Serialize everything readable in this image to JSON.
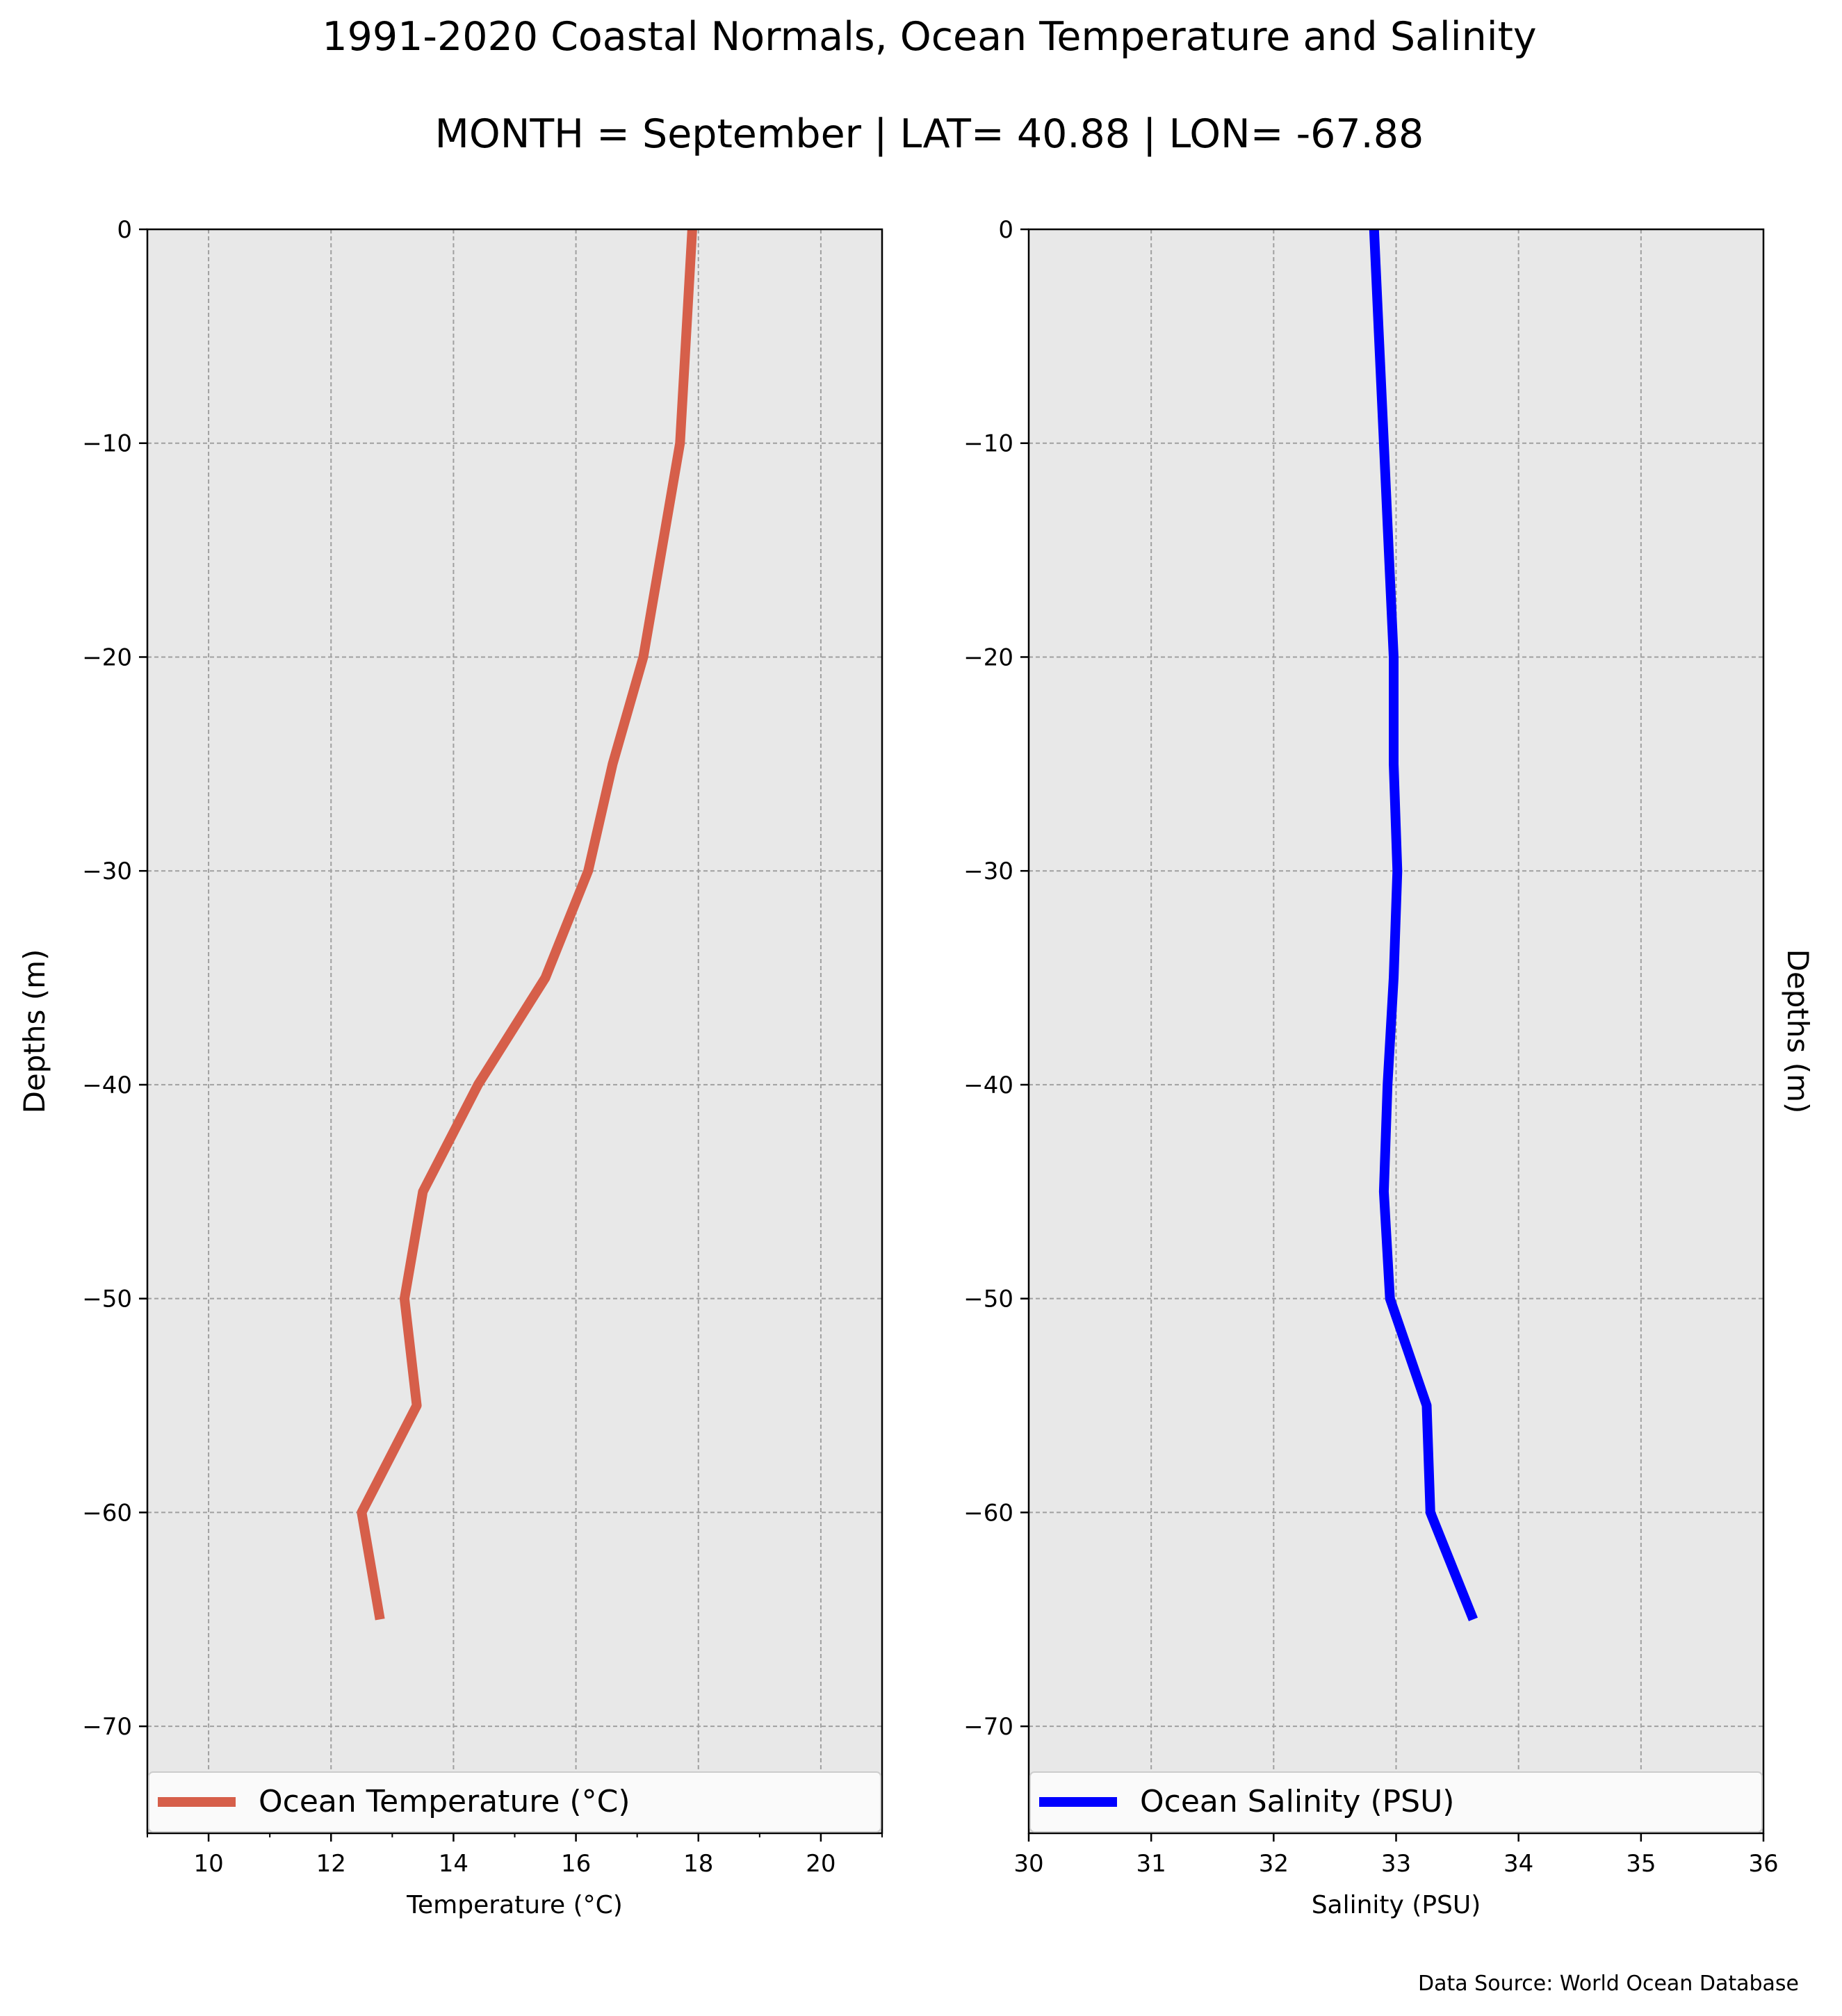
{
  "figure": {
    "title": "1991-2020 Coastal Normals, Ocean Temperature and Salinity",
    "subtitle": "MONTH = September | LAT= 40.88 | LON= -67.88",
    "source": "Data Source: World Ocean Database"
  },
  "chart_data": [
    {
      "type": "line",
      "xlabel": "Temperature ($^\\circ$C)",
      "xlabel_display": "Temperature (°C)",
      "ylabel": "Depths (m)",
      "xlim": [
        9,
        21
      ],
      "ylim": [
        -75,
        0
      ],
      "xticks": [
        10,
        12,
        14,
        16,
        18,
        20
      ],
      "xticks_labels": [
        "10",
        "12",
        "14",
        "16",
        "18",
        "20"
      ],
      "yticks": [
        0,
        -10,
        -20,
        -30,
        -40,
        -50,
        -60,
        -70
      ],
      "yticks_labels": [
        "0",
        "−10",
        "−20",
        "−30",
        "−40",
        "−50",
        "−60",
        "−70"
      ],
      "grid": true,
      "legend_position": "bottom",
      "series": [
        {
          "name": "Ocean Temperature (°C)",
          "color": "#d65f4a",
          "x": [
            17.9,
            17.8,
            17.7,
            17.4,
            17.1,
            16.6,
            16.2,
            15.5,
            14.4,
            13.5,
            13.2,
            13.4,
            12.5,
            12.8
          ],
          "y": [
            0,
            -5,
            -10,
            -15,
            -20,
            -25,
            -30,
            -35,
            -40,
            -45,
            -50,
            -55,
            -60,
            -65
          ]
        }
      ]
    },
    {
      "type": "line",
      "xlabel": "Salinity (PSU)",
      "ylabel": "Depths (m)",
      "xlim": [
        30,
        36
      ],
      "ylim": [
        -75,
        0
      ],
      "xticks": [
        30,
        31,
        32,
        33,
        34,
        35,
        36
      ],
      "xticks_labels": [
        "30",
        "31",
        "32",
        "33",
        "34",
        "35",
        "36"
      ],
      "yticks": [
        0,
        -10,
        -20,
        -30,
        -40,
        -50,
        -60,
        -70
      ],
      "yticks_labels": [
        "0",
        "−10",
        "−20",
        "−30",
        "−40",
        "−50",
        "−60",
        "−70"
      ],
      "grid": true,
      "legend_position": "bottom",
      "series": [
        {
          "name": "Ocean Salinity (PSU)",
          "color": "#0000ff",
          "x": [
            32.82,
            32.86,
            32.9,
            32.94,
            32.98,
            32.98,
            33.01,
            32.98,
            32.93,
            32.9,
            32.95,
            33.25,
            33.28,
            33.63
          ],
          "y": [
            0,
            -5,
            -10,
            -15,
            -20,
            -25,
            -30,
            -35,
            -40,
            -45,
            -50,
            -55,
            -60,
            -65
          ]
        }
      ]
    }
  ]
}
